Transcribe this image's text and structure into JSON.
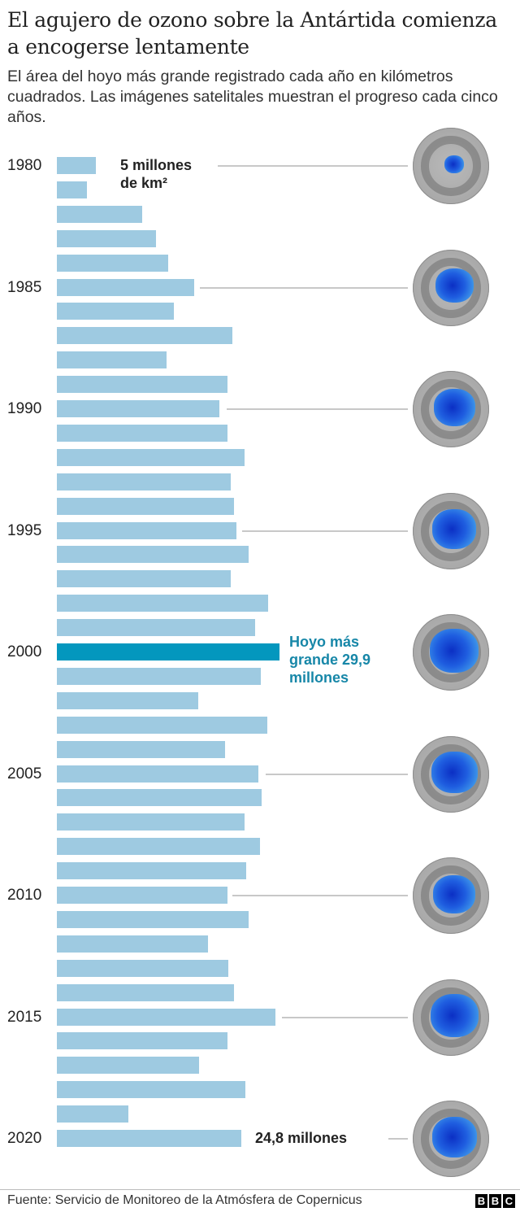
{
  "header": {
    "title": "El agujero de ozono sobre la Antártida comienza a encogerse lentamente",
    "subtitle": "El área del hoyo más grande registrado cada año en kilómetros cuadrados. Las imágenes satelitales muestran el progreso cada cinco años."
  },
  "annotations": {
    "first": "5 millones de km²",
    "max": "Hoyo más grande 29,9 millones",
    "last": "24,8 millones"
  },
  "footer": {
    "source": "Fuente: Servicio de Monitoreo de la Atmósfera de Copernicus",
    "logo": [
      "B",
      "B",
      "C"
    ]
  },
  "colors": {
    "bar": "#9ecae1",
    "highlight": "#0397be",
    "highlight_text": "#1787a8",
    "leader": "#c8c8c8"
  },
  "chart_data": {
    "type": "bar",
    "orientation": "horizontal",
    "title": "El agujero de ozono sobre la Antártida comienza a encogerse lentamente",
    "subtitle": "El área del hoyo más grande registrado cada año en kilómetros cuadrados. Las imágenes satelitales muestran el progreso cada cinco años.",
    "xlabel": "",
    "ylabel": "",
    "unit": "millones de km²",
    "categories": [
      1980,
      1981,
      1982,
      1983,
      1984,
      1985,
      1986,
      1987,
      1988,
      1989,
      1990,
      1991,
      1992,
      1993,
      1994,
      1995,
      1996,
      1997,
      1998,
      1999,
      2000,
      2001,
      2002,
      2003,
      2004,
      2005,
      2006,
      2007,
      2008,
      2009,
      2010,
      2011,
      2012,
      2013,
      2014,
      2015,
      2016,
      2017,
      2018,
      2019,
      2020
    ],
    "tick_labels": [
      "1980",
      "1985",
      "1990",
      "1995",
      "2000",
      "2005",
      "2010",
      "2015",
      "2020"
    ],
    "values": [
      5.0,
      4.0,
      11.5,
      13.3,
      15.0,
      18.4,
      15.7,
      23.6,
      14.7,
      22.9,
      21.8,
      22.9,
      25.2,
      23.4,
      23.8,
      24.1,
      25.8,
      23.4,
      28.4,
      26.6,
      29.9,
      27.4,
      19.0,
      28.3,
      22.6,
      27.1,
      27.5,
      25.2,
      27.3,
      25.4,
      22.9,
      25.8,
      20.3,
      23.0,
      23.8,
      29.3,
      22.9,
      19.1,
      25.3,
      9.6,
      24.8
    ],
    "highlight": {
      "category": 2000,
      "value": 29.9,
      "label": "Hoyo más grande 29,9 millones"
    },
    "labeled_values": [
      {
        "category": 1980,
        "label": "5 millones de km²"
      },
      {
        "category": 2000,
        "label": "Hoyo más grande 29,9 millones"
      },
      {
        "category": 2020,
        "label": "24,8 millones"
      }
    ],
    "satellite_images_years": [
      1980,
      1985,
      1990,
      1995,
      2000,
      2005,
      2010,
      2015,
      2020
    ],
    "grid": false,
    "legend": null,
    "source": "Fuente: Servicio de Monitoreo de la Atmósfera de Copernicus"
  }
}
